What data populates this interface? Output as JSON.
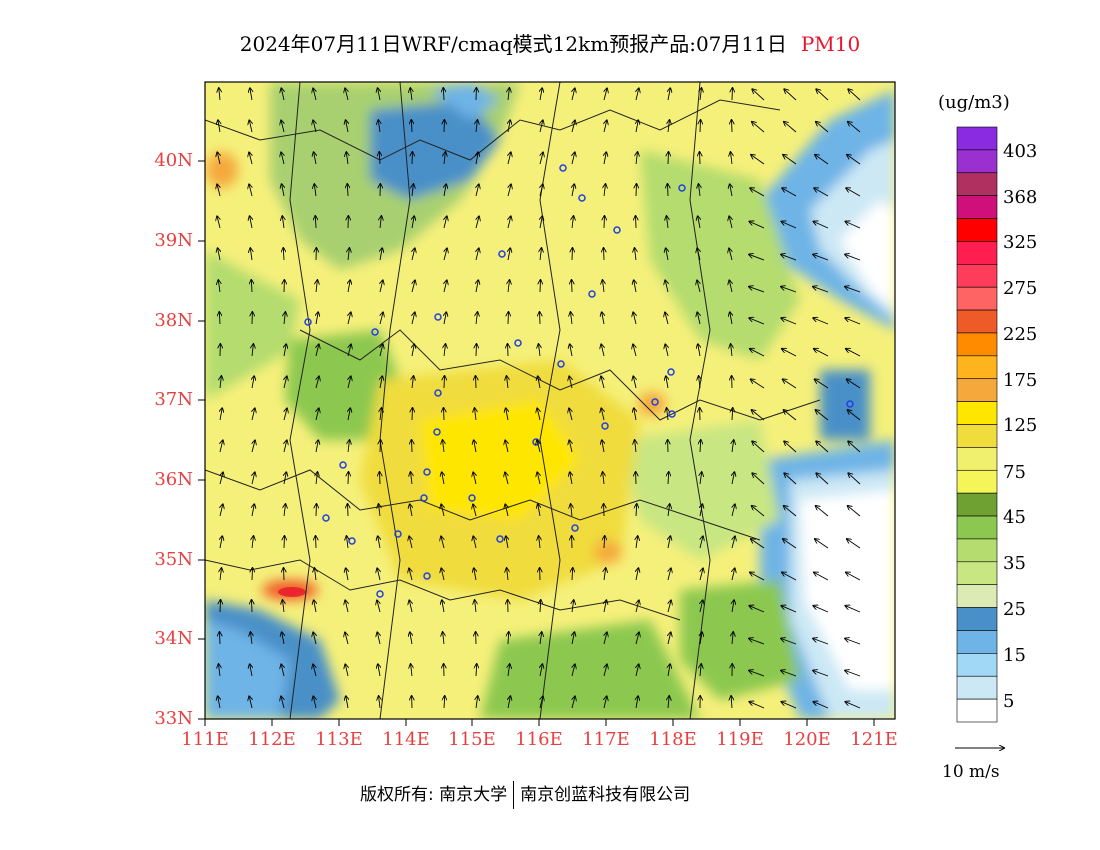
{
  "title": {
    "main": "2024年07月11日WRF/cmaq模式12km预报产品:07月11日",
    "variable": "PM10"
  },
  "axes": {
    "y_labels": [
      "40N",
      "39N",
      "38N",
      "37N",
      "36N",
      "35N",
      "34N",
      "33N"
    ],
    "x_labels": [
      "111E",
      "112E",
      "113E",
      "114E",
      "115E",
      "116E",
      "117E",
      "118E",
      "119E",
      "120E",
      "121E"
    ]
  },
  "legend": {
    "unit": "(ug/m3)",
    "labels": [
      "403",
      "368",
      "325",
      "275",
      "225",
      "175",
      "125",
      "75",
      "45",
      "35",
      "25",
      "15",
      "5"
    ],
    "colors": [
      "#8a2be2",
      "#9b30d0",
      "#b03060",
      "#d0107a",
      "#ff0000",
      "#ff1e50",
      "#ff3c5a",
      "#ff6464",
      "#ee5a28",
      "#ff8c00",
      "#ffb41e",
      "#f5a83c",
      "#ffe600",
      "#f0dc3c",
      "#f0f06e",
      "#f5f55a",
      "#6ea032",
      "#8cc850",
      "#b4dc6e",
      "#c8e682",
      "#dceab4",
      "#4a90c8",
      "#6eb4e6",
      "#a0d8f5",
      "#cce8f5",
      "#ffffff"
    ]
  },
  "wind": {
    "label": "10 m/s"
  },
  "footer": {
    "left": "版权所有: 南京大学",
    "right": "南京创蓝科技有限公司"
  }
}
